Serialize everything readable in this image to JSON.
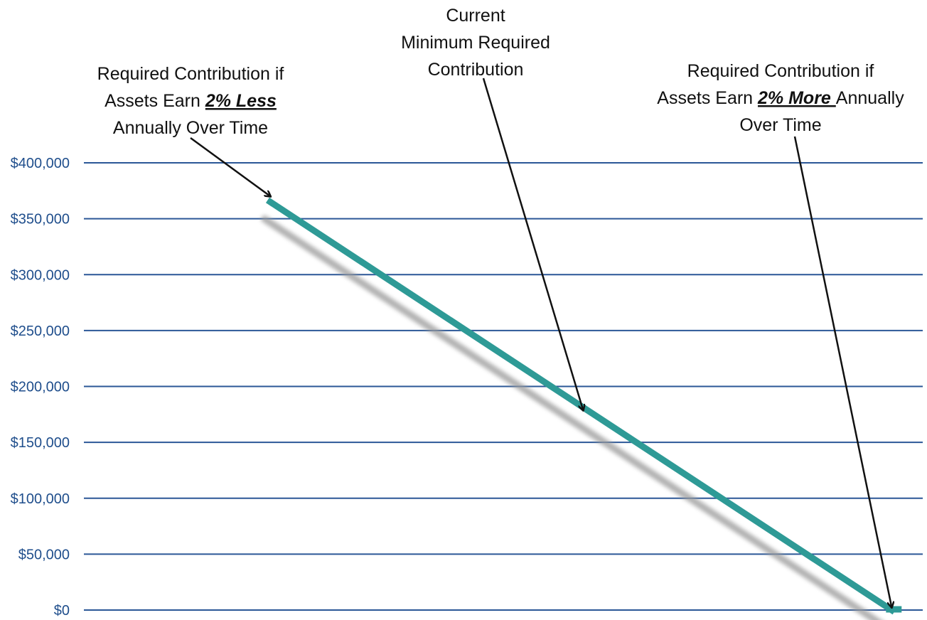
{
  "chart_data": {
    "type": "line",
    "title": "",
    "xlabel": "",
    "ylabel": "",
    "ylim": [
      0,
      400000
    ],
    "y_ticks": [
      {
        "value": 0,
        "label": "$0"
      },
      {
        "value": 50000,
        "label": "$50,000"
      },
      {
        "value": 100000,
        "label": "$100,000"
      },
      {
        "value": 150000,
        "label": "$150,000"
      },
      {
        "value": 200000,
        "label": "$200,000"
      },
      {
        "value": 250000,
        "label": "$250,000"
      },
      {
        "value": 300000,
        "label": "$300,000"
      },
      {
        "value": 350000,
        "label": "$350,000"
      },
      {
        "value": 400000,
        "label": "$400,000"
      }
    ],
    "grid": true,
    "legend": "none",
    "series": [
      {
        "color": "#2e9a96",
        "shadow_color": "#9a9a9a",
        "x": [
          -2,
          2
        ],
        "y": [
          365000,
          0
        ]
      }
    ],
    "annotations": [
      {
        "id": "less",
        "lines": [
          [
            {
              "text": "Required Contribution if",
              "em": false
            }
          ],
          [
            {
              "text": "Assets Earn ",
              "em": false
            },
            {
              "text": "2% Less",
              "em": true
            }
          ],
          [
            {
              "text": "Annually Over Time",
              "em": false
            }
          ]
        ],
        "points_to": {
          "x": -2,
          "y": 365000
        }
      },
      {
        "id": "current",
        "lines": [
          [
            {
              "text": "Current",
              "em": false
            }
          ],
          [
            {
              "text": "Minimum Required",
              "em": false
            }
          ],
          [
            {
              "text": "Contribution",
              "em": false
            }
          ]
        ],
        "points_to": {
          "x": 0,
          "y": 175000
        }
      },
      {
        "id": "more",
        "lines": [
          [
            {
              "text": "Required Contribution if",
              "em": false
            }
          ],
          [
            {
              "text": "Assets Earn ",
              "em": false
            },
            {
              "text": "2% More ",
              "em": true
            },
            {
              "text": "Annually",
              "em": false
            }
          ],
          [
            {
              "text": "Over Time",
              "em": false
            }
          ]
        ],
        "points_to": {
          "x": 2,
          "y": 0
        }
      }
    ]
  }
}
